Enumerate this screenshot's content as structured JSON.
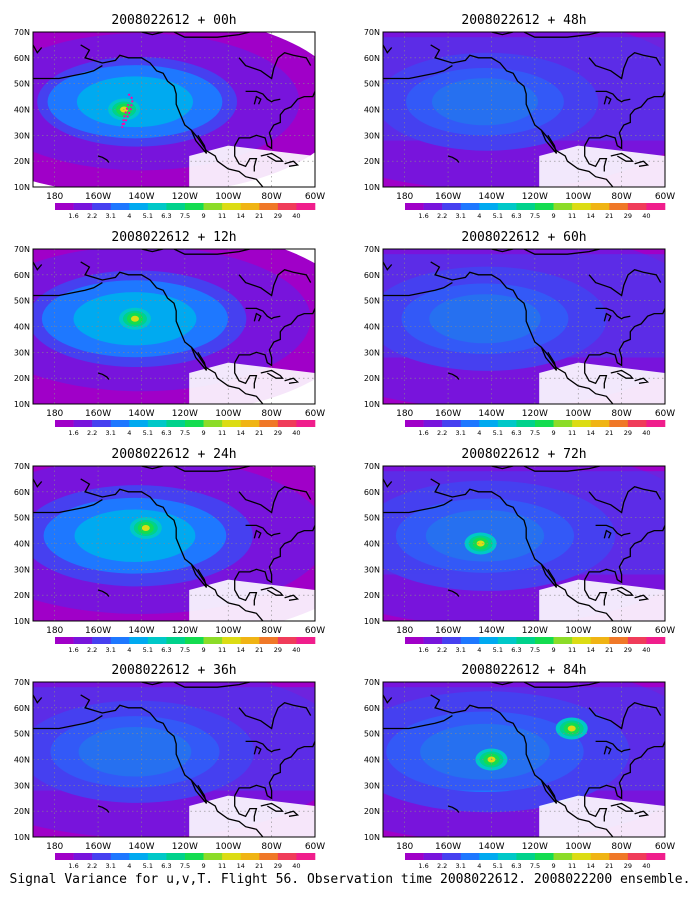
{
  "caption": "Signal Variance for u,v,T. Flight 56. Observation time 2008022612. 2008022200 ensemble.",
  "panels": [
    {
      "title": "2008022612 + 00h",
      "intensity": 0.55,
      "spread": 0.45,
      "hot_centers": [
        [
          -148,
          40
        ]
      ],
      "flight_track": true
    },
    {
      "title": "2008022612 + 48h",
      "intensity": 0.4,
      "spread": 0.95,
      "hot_centers": [],
      "flight_track": false
    },
    {
      "title": "2008022612 + 12h",
      "intensity": 0.65,
      "spread": 0.55,
      "hot_centers": [
        [
          -143,
          43
        ]
      ],
      "flight_track": false
    },
    {
      "title": "2008022612 + 60h",
      "intensity": 0.48,
      "spread": 1.0,
      "hot_centers": [],
      "flight_track": false
    },
    {
      "title": "2008022612 + 24h",
      "intensity": 0.62,
      "spread": 0.7,
      "hot_centers": [
        [
          -138,
          46
        ]
      ],
      "flight_track": false
    },
    {
      "title": "2008022612 + 72h",
      "intensity": 0.58,
      "spread": 1.0,
      "hot_centers": [
        [
          -145,
          40
        ]
      ],
      "flight_track": false
    },
    {
      "title": "2008022612 + 36h",
      "intensity": 0.5,
      "spread": 0.9,
      "hot_centers": [],
      "flight_track": false
    },
    {
      "title": "2008022612 + 84h",
      "intensity": 0.75,
      "spread": 1.0,
      "hot_centers": [
        [
          -140,
          40
        ],
        [
          -103,
          52
        ]
      ],
      "flight_track": false
    }
  ],
  "axes": {
    "lon_range": [
      -190,
      -60
    ],
    "lat_range": [
      10,
      70
    ],
    "x_ticks": [
      {
        "lon": -180,
        "label": "180"
      },
      {
        "lon": -160,
        "label": "160W"
      },
      {
        "lon": -140,
        "label": "140W"
      },
      {
        "lon": -120,
        "label": "120W"
      },
      {
        "lon": -100,
        "label": "100W"
      },
      {
        "lon": -80,
        "label": "80W"
      },
      {
        "lon": -60,
        "label": "60W"
      }
    ],
    "y_ticks": [
      {
        "lat": 10,
        "label": "10N"
      },
      {
        "lat": 20,
        "label": "20N"
      },
      {
        "lat": 30,
        "label": "30N"
      },
      {
        "lat": 40,
        "label": "40N"
      },
      {
        "lat": 50,
        "label": "50N"
      },
      {
        "lat": 60,
        "label": "60N"
      },
      {
        "lat": 70,
        "label": "70N"
      }
    ],
    "grid": "dotted"
  },
  "colorbar": {
    "labels": [
      "1.6",
      "2.2",
      "3.1",
      "4",
      "5.1",
      "6.3",
      "7.5",
      "9",
      "11",
      "14",
      "21",
      "29",
      "40"
    ],
    "colors": [
      "#a000c8",
      "#7814dc",
      "#4640f0",
      "#1e78ff",
      "#00aaf0",
      "#00c8c8",
      "#00d28c",
      "#14dc50",
      "#8cdc28",
      "#dcdc14",
      "#f0b414",
      "#f07828",
      "#f03c5a",
      "#f01e8c"
    ]
  }
}
